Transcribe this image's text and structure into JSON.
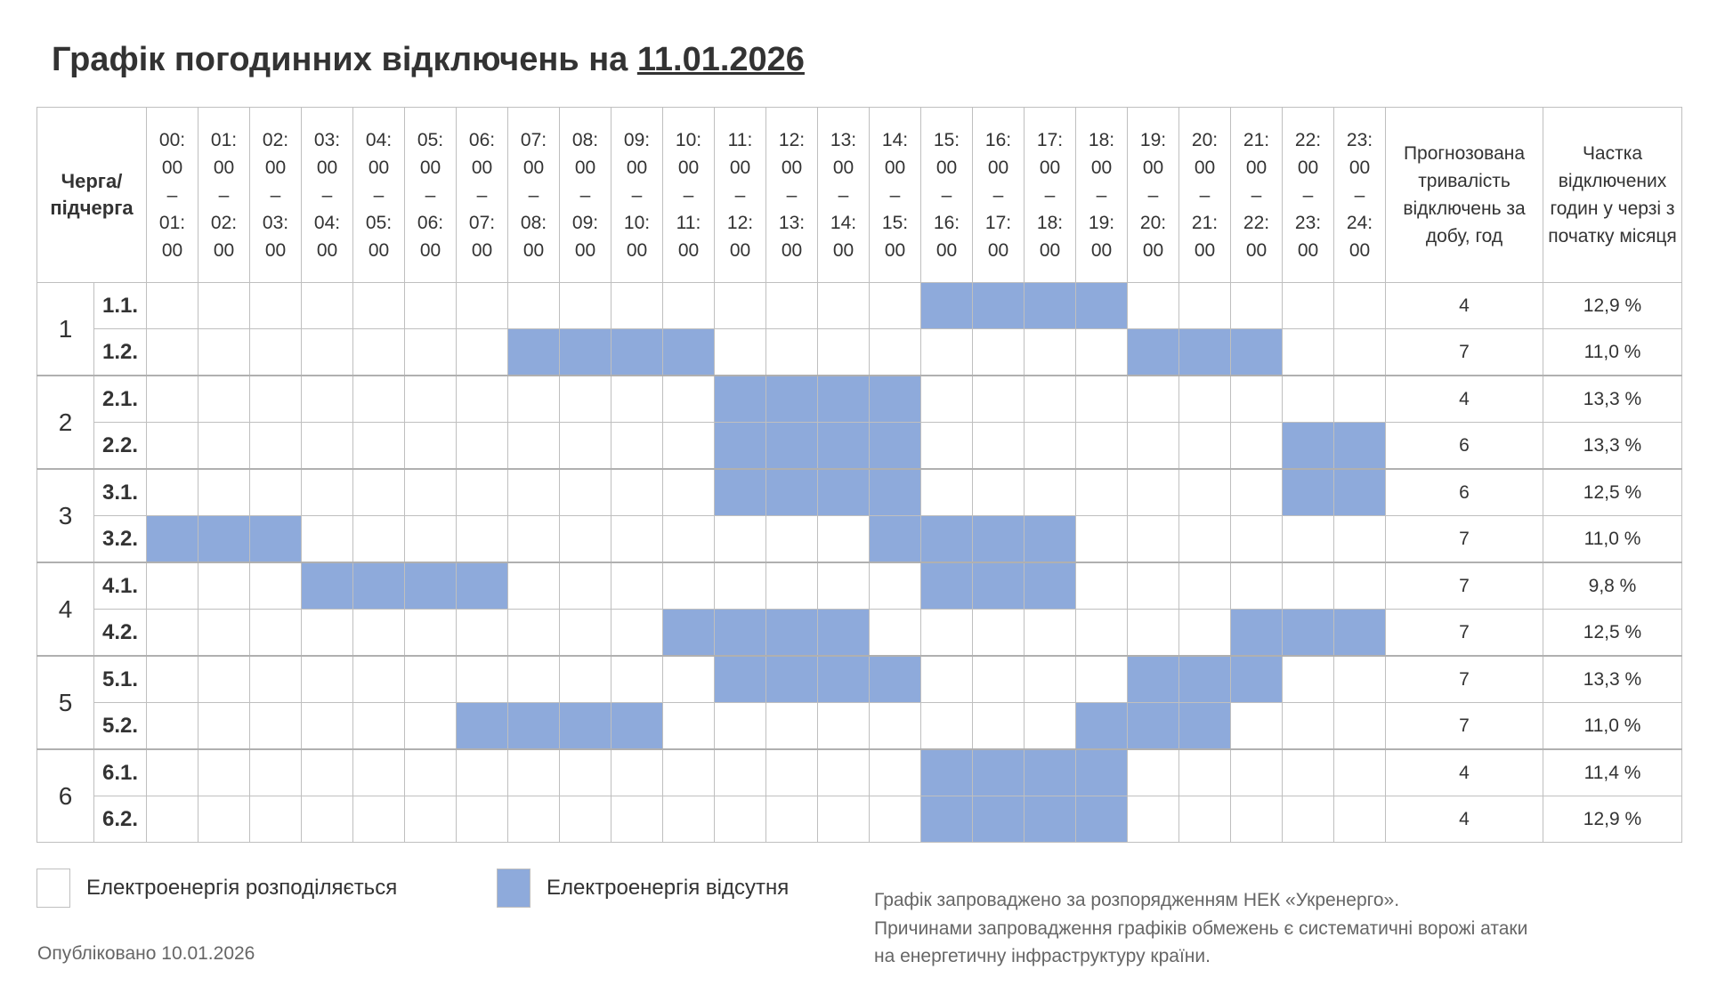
{
  "title": {
    "prefix": "Графік погодинних відключень на ",
    "date": "11.01.2026"
  },
  "header": {
    "queue_label": "Черга/ підчерга",
    "hours": [
      "00: 00 – 01: 00",
      "01: 00 – 02: 00",
      "02: 00 – 03: 00",
      "03: 00 – 04: 00",
      "04: 00 – 05: 00",
      "05: 00 – 06: 00",
      "06: 00 – 07: 00",
      "07: 00 – 08: 00",
      "08: 00 – 09: 00",
      "09: 00 – 10: 00",
      "10: 00 – 11: 00",
      "11: 00 – 12: 00",
      "12: 00 – 13: 00",
      "13: 00 – 14: 00",
      "14: 00 – 15: 00",
      "15: 00 – 16: 00",
      "16: 00 – 17: 00",
      "17: 00 – 18: 00",
      "18: 00 – 19: 00",
      "19: 00 – 20: 00",
      "20: 00 – 21: 00",
      "21: 00 – 22: 00",
      "22: 00 – 23: 00",
      "23: 00 – 24: 00"
    ],
    "duration_label": "Прогнозована тривалість відключень за добу, год",
    "share_label": "Частка відключених годин у черзі з початку місяця"
  },
  "colors": {
    "off": "#8eaadb",
    "on": "#ffffff"
  },
  "groups": [
    {
      "label": "1",
      "rows": [
        {
          "label": "1.1.",
          "off_hours": [
            15,
            16,
            17,
            18
          ],
          "duration": "4",
          "share": "12,9 %"
        },
        {
          "label": "1.2.",
          "off_hours": [
            7,
            8,
            9,
            10,
            19,
            20,
            21
          ],
          "duration": "7",
          "share": "11,0 %"
        }
      ]
    },
    {
      "label": "2",
      "rows": [
        {
          "label": "2.1.",
          "off_hours": [
            11,
            12,
            13,
            14
          ],
          "duration": "4",
          "share": "13,3 %"
        },
        {
          "label": "2.2.",
          "off_hours": [
            11,
            12,
            13,
            14,
            22,
            23
          ],
          "duration": "6",
          "share": "13,3 %"
        }
      ]
    },
    {
      "label": "3",
      "rows": [
        {
          "label": "3.1.",
          "off_hours": [
            11,
            12,
            13,
            14,
            22,
            23
          ],
          "duration": "6",
          "share": "12,5 %"
        },
        {
          "label": "3.2.",
          "off_hours": [
            0,
            1,
            2,
            14,
            15,
            16,
            17
          ],
          "duration": "7",
          "share": "11,0 %"
        }
      ]
    },
    {
      "label": "4",
      "rows": [
        {
          "label": "4.1.",
          "off_hours": [
            3,
            4,
            5,
            6,
            15,
            16,
            17
          ],
          "duration": "7",
          "share": "9,8 %"
        },
        {
          "label": "4.2.",
          "off_hours": [
            10,
            11,
            12,
            13,
            21,
            22,
            23
          ],
          "duration": "7",
          "share": "12,5 %"
        }
      ]
    },
    {
      "label": "5",
      "rows": [
        {
          "label": "5.1.",
          "off_hours": [
            11,
            12,
            13,
            14,
            19,
            20,
            21
          ],
          "duration": "7",
          "share": "13,3 %"
        },
        {
          "label": "5.2.",
          "off_hours": [
            6,
            7,
            8,
            9,
            18,
            19,
            20
          ],
          "duration": "7",
          "share": "11,0 %"
        }
      ]
    },
    {
      "label": "6",
      "rows": [
        {
          "label": "6.1.",
          "off_hours": [
            15,
            16,
            17,
            18
          ],
          "duration": "4",
          "share": "11,4 %"
        },
        {
          "label": "6.2.",
          "off_hours": [
            15,
            16,
            17,
            18
          ],
          "duration": "4",
          "share": "12,9 %"
        }
      ]
    }
  ],
  "legend": {
    "on": "Електроенергія розподіляється",
    "off": "Електроенергія відсутня"
  },
  "published": "Опубліковано 10.01.2026",
  "note": [
    "Графік запроваджено за розпорядженням НЕК «Укренерго».",
    "Причинами запровадження графіків обмежень є систематичні ворожі атаки",
    "на енергетичну інфраструктуру країни."
  ]
}
